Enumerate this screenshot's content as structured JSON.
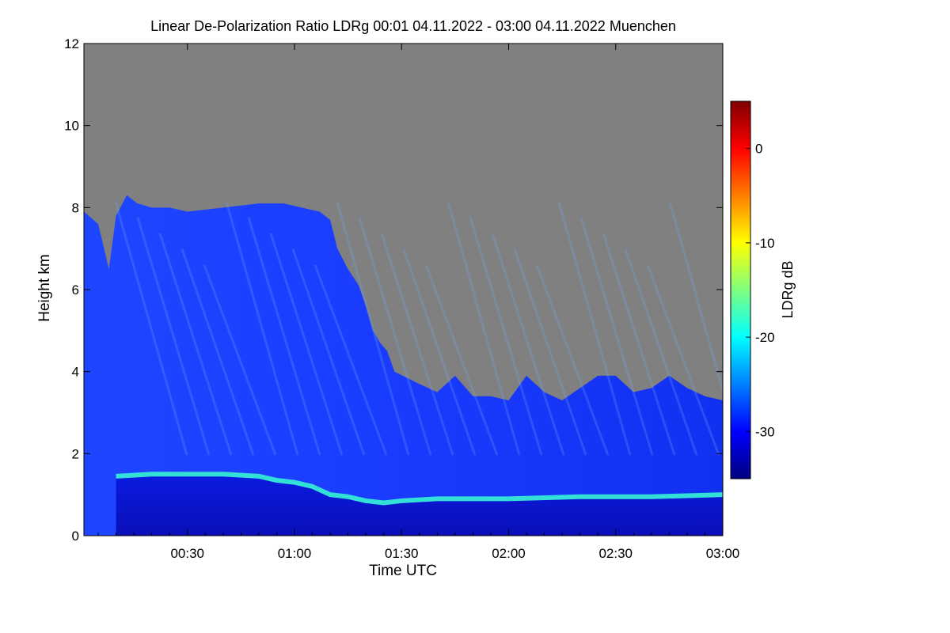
{
  "chart_data": {
    "type": "heatmap",
    "title": "Linear De-Polarization Ratio LDRg   00:01 04.11.2022 - 03:00 04.11.2022 Muenchen",
    "xlabel": "Time UTC",
    "ylabel": "Height km",
    "x_range_minutes": [
      1,
      180
    ],
    "ylim": [
      0,
      12
    ],
    "x_ticks": [
      {
        "minute": 30,
        "label": "00:30"
      },
      {
        "minute": 60,
        "label": "01:00"
      },
      {
        "minute": 90,
        "label": "01:30"
      },
      {
        "minute": 120,
        "label": "02:00"
      },
      {
        "minute": 150,
        "label": "02:30"
      },
      {
        "minute": 180,
        "label": "03:00"
      }
    ],
    "y_ticks": [
      {
        "value": 0,
        "label": "0"
      },
      {
        "value": 2,
        "label": "2"
      },
      {
        "value": 4,
        "label": "4"
      },
      {
        "value": 6,
        "label": "6"
      },
      {
        "value": 8,
        "label": "8"
      },
      {
        "value": 10,
        "label": "10"
      },
      {
        "value": 12,
        "label": "12"
      }
    ],
    "colorbar": {
      "label": "LDRg dB",
      "range": [
        -35,
        5
      ],
      "ticks": [
        {
          "value": 0,
          "label": "0"
        },
        {
          "value": -10,
          "label": "-10"
        },
        {
          "value": -20,
          "label": "-20"
        },
        {
          "value": -30,
          "label": "-30"
        }
      ],
      "colormap": [
        "#00007f",
        "#0000ff",
        "#007fff",
        "#00ffff",
        "#7fff7f",
        "#ffff00",
        "#ff7f00",
        "#ff0000",
        "#7f0000"
      ],
      "nodata_color": "#808080"
    },
    "cloud_top_km": [
      [
        1,
        7.9
      ],
      [
        5,
        7.6
      ],
      [
        8,
        6.5
      ],
      [
        10,
        7.8
      ],
      [
        13,
        8.3
      ],
      [
        16,
        8.1
      ],
      [
        20,
        8.0
      ],
      [
        25,
        8.0
      ],
      [
        30,
        7.9
      ],
      [
        40,
        8.0
      ],
      [
        50,
        8.1
      ],
      [
        57,
        8.1
      ],
      [
        62,
        8.0
      ],
      [
        67,
        7.9
      ],
      [
        70,
        7.7
      ],
      [
        72,
        7.0
      ],
      [
        75,
        6.5
      ],
      [
        78,
        6.1
      ],
      [
        80,
        5.6
      ],
      [
        82,
        5.0
      ],
      [
        84,
        4.7
      ],
      [
        86,
        4.5
      ],
      [
        88,
        4.0
      ],
      [
        95,
        3.7
      ],
      [
        100,
        3.5
      ],
      [
        105,
        3.9
      ],
      [
        110,
        3.4
      ],
      [
        115,
        3.4
      ],
      [
        120,
        3.3
      ],
      [
        125,
        3.9
      ],
      [
        130,
        3.5
      ],
      [
        135,
        3.3
      ],
      [
        140,
        3.6
      ],
      [
        145,
        3.9
      ],
      [
        150,
        3.9
      ],
      [
        155,
        3.5
      ],
      [
        160,
        3.6
      ],
      [
        165,
        3.9
      ],
      [
        170,
        3.6
      ],
      [
        175,
        3.4
      ],
      [
        180,
        3.3
      ]
    ],
    "melting_layer_km": [
      [
        10,
        1.45
      ],
      [
        20,
        1.5
      ],
      [
        30,
        1.5
      ],
      [
        40,
        1.5
      ],
      [
        50,
        1.45
      ],
      [
        55,
        1.35
      ],
      [
        60,
        1.3
      ],
      [
        65,
        1.2
      ],
      [
        70,
        1.0
      ],
      [
        75,
        0.95
      ],
      [
        80,
        0.85
      ],
      [
        85,
        0.8
      ],
      [
        90,
        0.85
      ],
      [
        100,
        0.9
      ],
      [
        120,
        0.9
      ],
      [
        140,
        0.95
      ],
      [
        160,
        0.95
      ],
      [
        180,
        1.0
      ]
    ]
  }
}
